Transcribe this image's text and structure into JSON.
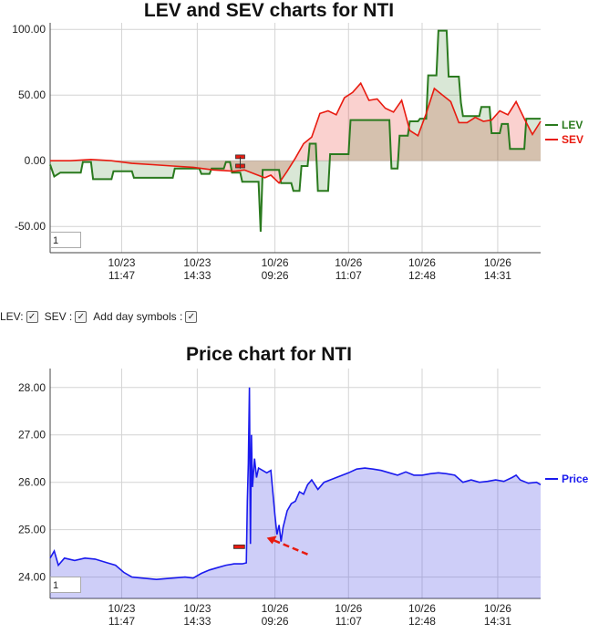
{
  "lev_chart": {
    "title": "LEV and SEV charts for NTI",
    "zoom_value": "1"
  },
  "price_chart": {
    "title": "Price chart for NTI",
    "zoom_value": "1"
  },
  "controls": {
    "lev_label": "LEV:",
    "sev_label": "SEV :",
    "day_symbols_label": "Add day symbols :"
  },
  "chart_data": [
    {
      "type": "line",
      "title": "LEV and SEV charts for NTI",
      "x_tick_labels": [
        [
          "10/23",
          "11:47"
        ],
        [
          "10/23",
          "14:33"
        ],
        [
          "10/26",
          "09:26"
        ],
        [
          "10/26",
          "11:07"
        ],
        [
          "10/26",
          "12:48"
        ],
        [
          "10/26",
          "14:31"
        ]
      ],
      "y_ticks": [
        "100.00",
        "50.00",
        "0.00",
        "-50.00"
      ],
      "ylim": [
        -70,
        105
      ],
      "legend": "right",
      "grid": true,
      "series": [
        {
          "name": "LEV",
          "color": "#2a7a1e",
          "points": [
            [
              0,
              -3
            ],
            [
              2,
              -12
            ],
            [
              5,
              -9
            ],
            [
              15,
              -9
            ],
            [
              16,
              -1
            ],
            [
              20,
              -1
            ],
            [
              21,
              -14
            ],
            [
              30,
              -14
            ],
            [
              31,
              -8
            ],
            [
              40,
              -8
            ],
            [
              41,
              -13
            ],
            [
              60,
              -13
            ],
            [
              61,
              -6
            ],
            [
              73,
              -6
            ],
            [
              74,
              -10
            ],
            [
              78,
              -10
            ],
            [
              79,
              -6
            ],
            [
              85,
              -6
            ],
            [
              86,
              -1
            ],
            [
              88,
              -1
            ],
            [
              89,
              -9
            ],
            [
              93,
              -9
            ],
            [
              94,
              -16
            ],
            [
              102,
              -16
            ],
            [
              103,
              -54
            ],
            [
              104,
              -7
            ],
            [
              112,
              -7
            ],
            [
              113,
              -17
            ],
            [
              118,
              -17
            ],
            [
              119,
              -23
            ],
            [
              122,
              -23
            ],
            [
              123,
              -4
            ],
            [
              126,
              -4
            ],
            [
              127,
              13
            ],
            [
              130,
              13
            ],
            [
              131,
              -23
            ],
            [
              136,
              -23
            ],
            [
              137,
              5
            ],
            [
              146,
              5
            ],
            [
              147,
              31
            ],
            [
              166,
              31
            ],
            [
              167,
              -6
            ],
            [
              170,
              -6
            ],
            [
              171,
              19
            ],
            [
              175,
              19
            ],
            [
              176,
              30
            ],
            [
              180,
              30
            ],
            [
              181,
              32
            ],
            [
              184,
              32
            ],
            [
              185,
              65
            ],
            [
              189,
              65
            ],
            [
              190,
              99
            ],
            [
              194,
              99
            ],
            [
              195,
              64
            ],
            [
              200,
              64
            ],
            [
              201,
              44
            ],
            [
              202,
              34
            ],
            [
              210,
              34
            ],
            [
              211,
              41
            ],
            [
              215,
              41
            ],
            [
              216,
              21
            ],
            [
              220,
              21
            ],
            [
              221,
              28
            ],
            [
              224,
              28
            ],
            [
              225,
              9
            ],
            [
              232,
              9
            ],
            [
              233,
              32
            ],
            [
              240,
              32
            ]
          ]
        },
        {
          "name": "SEV",
          "color": "#e81b10",
          "points": [
            [
              0,
              0
            ],
            [
              10,
              0
            ],
            [
              20,
              1
            ],
            [
              30,
              0
            ],
            [
              40,
              -2
            ],
            [
              50,
              -3
            ],
            [
              60,
              -4
            ],
            [
              70,
              -5
            ],
            [
              80,
              -7
            ],
            [
              90,
              -8
            ],
            [
              95,
              -7
            ],
            [
              100,
              -10
            ],
            [
              105,
              -13
            ],
            [
              108,
              -11
            ],
            [
              112,
              -17
            ],
            [
              116,
              -8
            ],
            [
              120,
              2
            ],
            [
              124,
              13
            ],
            [
              128,
              18
            ],
            [
              132,
              36
            ],
            [
              136,
              38
            ],
            [
              140,
              35
            ],
            [
              144,
              48
            ],
            [
              148,
              52
            ],
            [
              152,
              59
            ],
            [
              156,
              46
            ],
            [
              160,
              47
            ],
            [
              164,
              40
            ],
            [
              168,
              37
            ],
            [
              172,
              46
            ],
            [
              176,
              23
            ],
            [
              180,
              19
            ],
            [
              184,
              36
            ],
            [
              188,
              55
            ],
            [
              192,
              50
            ],
            [
              196,
              45
            ],
            [
              200,
              29
            ],
            [
              204,
              29
            ],
            [
              208,
              33
            ],
            [
              212,
              30
            ],
            [
              216,
              31
            ],
            [
              220,
              38
            ],
            [
              224,
              35
            ],
            [
              228,
              45
            ],
            [
              232,
              32
            ],
            [
              236,
              20
            ],
            [
              240,
              30
            ]
          ]
        }
      ]
    },
    {
      "type": "area",
      "title": "Price chart for NTI",
      "x_tick_labels": [
        [
          "10/23",
          "11:47"
        ],
        [
          "10/23",
          "14:33"
        ],
        [
          "10/26",
          "09:26"
        ],
        [
          "10/26",
          "11:07"
        ],
        [
          "10/26",
          "12:48"
        ],
        [
          "10/26",
          "14:31"
        ]
      ],
      "y_ticks": [
        "28.00",
        "27.00",
        "26.00",
        "25.00",
        "24.00"
      ],
      "ylim": [
        23.55,
        28.4
      ],
      "legend": "right",
      "grid": true,
      "series": [
        {
          "name": "Price",
          "color": "#1a1aee",
          "points": [
            [
              0,
              24.4
            ],
            [
              2,
              24.55
            ],
            [
              4,
              24.25
            ],
            [
              7,
              24.4
            ],
            [
              12,
              24.35
            ],
            [
              17,
              24.4
            ],
            [
              22,
              24.38
            ],
            [
              28,
              24.3
            ],
            [
              32,
              24.25
            ],
            [
              36,
              24.1
            ],
            [
              40,
              24.0
            ],
            [
              45,
              23.98
            ],
            [
              52,
              23.95
            ],
            [
              60,
              23.98
            ],
            [
              66,
              24.0
            ],
            [
              70,
              23.98
            ],
            [
              74,
              24.08
            ],
            [
              78,
              24.15
            ],
            [
              82,
              24.2
            ],
            [
              86,
              24.25
            ],
            [
              90,
              24.28
            ],
            [
              94,
              24.28
            ],
            [
              96,
              24.3
            ],
            [
              96.5,
              25.6
            ],
            [
              97,
              26.4
            ],
            [
              97.5,
              28.0
            ],
            [
              98,
              24.7
            ],
            [
              98.5,
              27.0
            ],
            [
              99,
              25.9
            ],
            [
              100,
              26.5
            ],
            [
              101,
              26.1
            ],
            [
              102,
              26.3
            ],
            [
              104,
              26.25
            ],
            [
              106,
              26.2
            ],
            [
              108,
              26.25
            ],
            [
              110,
              25.3
            ],
            [
              111,
              24.9
            ],
            [
              112,
              25.1
            ],
            [
              113,
              24.75
            ],
            [
              114,
              25.05
            ],
            [
              116,
              25.4
            ],
            [
              118,
              25.55
            ],
            [
              120,
              25.6
            ],
            [
              122,
              25.8
            ],
            [
              124,
              25.75
            ],
            [
              126,
              25.95
            ],
            [
              128,
              26.05
            ],
            [
              131,
              25.85
            ],
            [
              134,
              26.0
            ],
            [
              137,
              26.05
            ],
            [
              140,
              26.1
            ],
            [
              143,
              26.15
            ],
            [
              146,
              26.2
            ],
            [
              150,
              26.28
            ],
            [
              154,
              26.3
            ],
            [
              158,
              26.28
            ],
            [
              162,
              26.25
            ],
            [
              166,
              26.2
            ],
            [
              170,
              26.15
            ],
            [
              174,
              26.22
            ],
            [
              178,
              26.15
            ],
            [
              182,
              26.15
            ],
            [
              186,
              26.18
            ],
            [
              190,
              26.2
            ],
            [
              194,
              26.18
            ],
            [
              198,
              26.15
            ],
            [
              202,
              26.0
            ],
            [
              206,
              26.05
            ],
            [
              210,
              26.0
            ],
            [
              214,
              26.02
            ],
            [
              218,
              26.05
            ],
            [
              222,
              26.02
            ],
            [
              226,
              26.1
            ],
            [
              228,
              26.15
            ],
            [
              230,
              26.05
            ],
            [
              234,
              25.98
            ],
            [
              238,
              26.0
            ],
            [
              240,
              25.95
            ]
          ]
        }
      ],
      "annotations": [
        "red-arrow-pointing-to-dip"
      ]
    }
  ]
}
